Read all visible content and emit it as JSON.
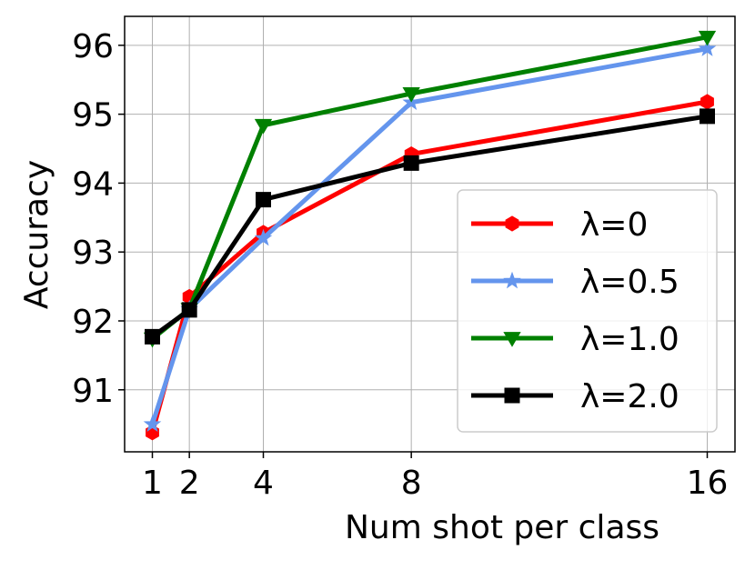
{
  "chart_data": {
    "type": "line",
    "xlabel": "Num shot per class",
    "ylabel": "Accuracy",
    "x": [
      1,
      2,
      4,
      8,
      16
    ],
    "series": [
      {
        "name": "λ=0",
        "color": "#ff0000",
        "marker": "hexagon",
        "values": [
          90.38,
          92.35,
          93.28,
          94.42,
          95.18
        ]
      },
      {
        "name": "λ=0.5",
        "color": "#6495ed",
        "marker": "star",
        "values": [
          90.5,
          92.17,
          93.2,
          95.17,
          95.95
        ]
      },
      {
        "name": "λ=1.0",
        "color": "#008000",
        "marker": "triangle-down",
        "values": [
          91.74,
          92.17,
          94.84,
          95.3,
          96.12
        ]
      },
      {
        "name": "λ=2.0",
        "color": "#000000",
        "marker": "square",
        "values": [
          91.77,
          92.16,
          93.76,
          94.29,
          94.97
        ]
      }
    ],
    "xlim": [
      0.25,
      16.75
    ],
    "xticks": [
      1,
      2,
      4,
      8,
      16
    ],
    "ylim": [
      90.1,
      96.42
    ],
    "yticks": [
      91,
      92,
      93,
      94,
      95,
      96
    ],
    "grid": true,
    "legend": "lower right"
  }
}
